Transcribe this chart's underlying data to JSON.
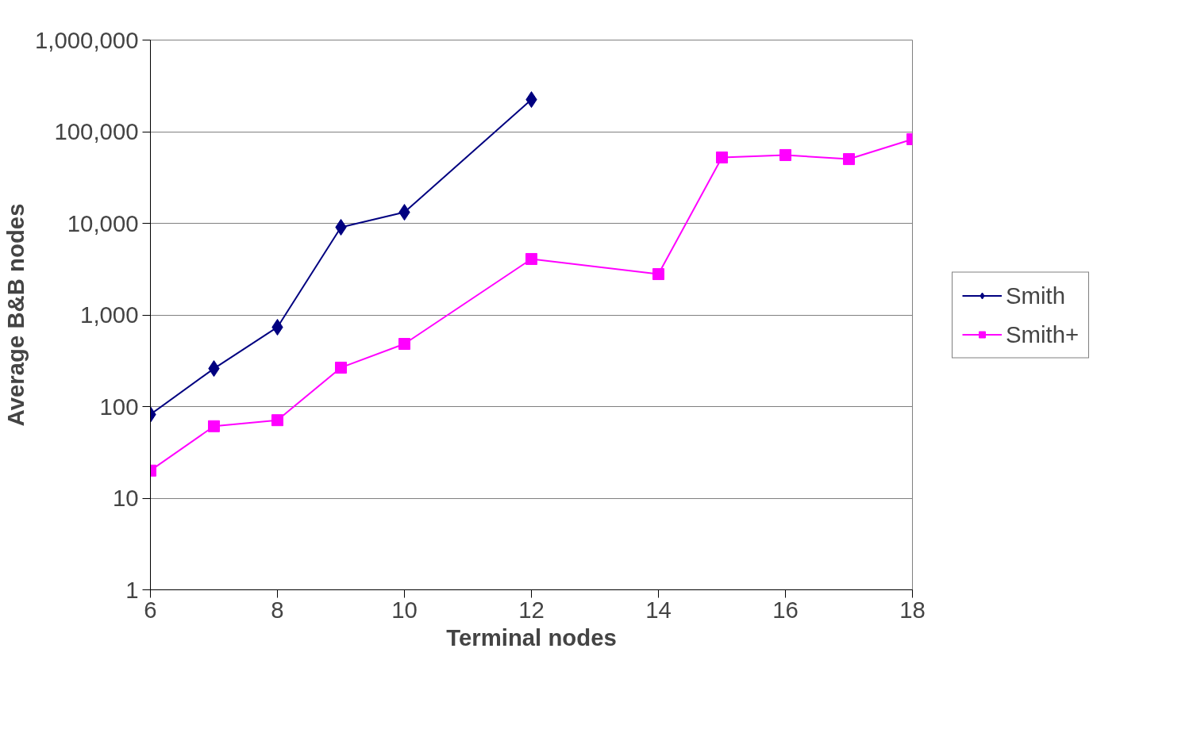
{
  "chart_data": {
    "type": "line",
    "xlabel": "Terminal nodes",
    "ylabel": "Average B&B nodes",
    "log": "y",
    "grid": "y",
    "legend": "right",
    "line_style": "solid",
    "xlim": [
      6,
      18
    ],
    "xticks": [
      6,
      8,
      10,
      12,
      14,
      16,
      18
    ],
    "ylim": [
      1,
      1000000
    ],
    "yticks": [
      1,
      10,
      100,
      {
        "value": 1000,
        "label": "1,000"
      },
      {
        "value": 10000,
        "label": "10,000"
      },
      {
        "value": 100000,
        "label": "100,000"
      },
      {
        "value": 1000000,
        "label": "1,000,000"
      }
    ],
    "series": [
      {
        "name": "Smith",
        "color": "#000080",
        "marker": "diamond",
        "x": [
          6,
          7,
          8,
          9,
          10,
          12
        ],
        "values": [
          82,
          260,
          735,
          9060,
          13200,
          224000
        ]
      },
      {
        "name": "Smith+",
        "color": "#ff00ff",
        "marker": "square",
        "x": [
          6,
          7,
          8,
          9,
          10,
          12,
          14,
          15,
          16,
          17,
          18
        ],
        "values": [
          20,
          61,
          71,
          266,
          483,
          4080,
          2790,
          52300,
          55600,
          50200,
          82800
        ]
      }
    ]
  }
}
